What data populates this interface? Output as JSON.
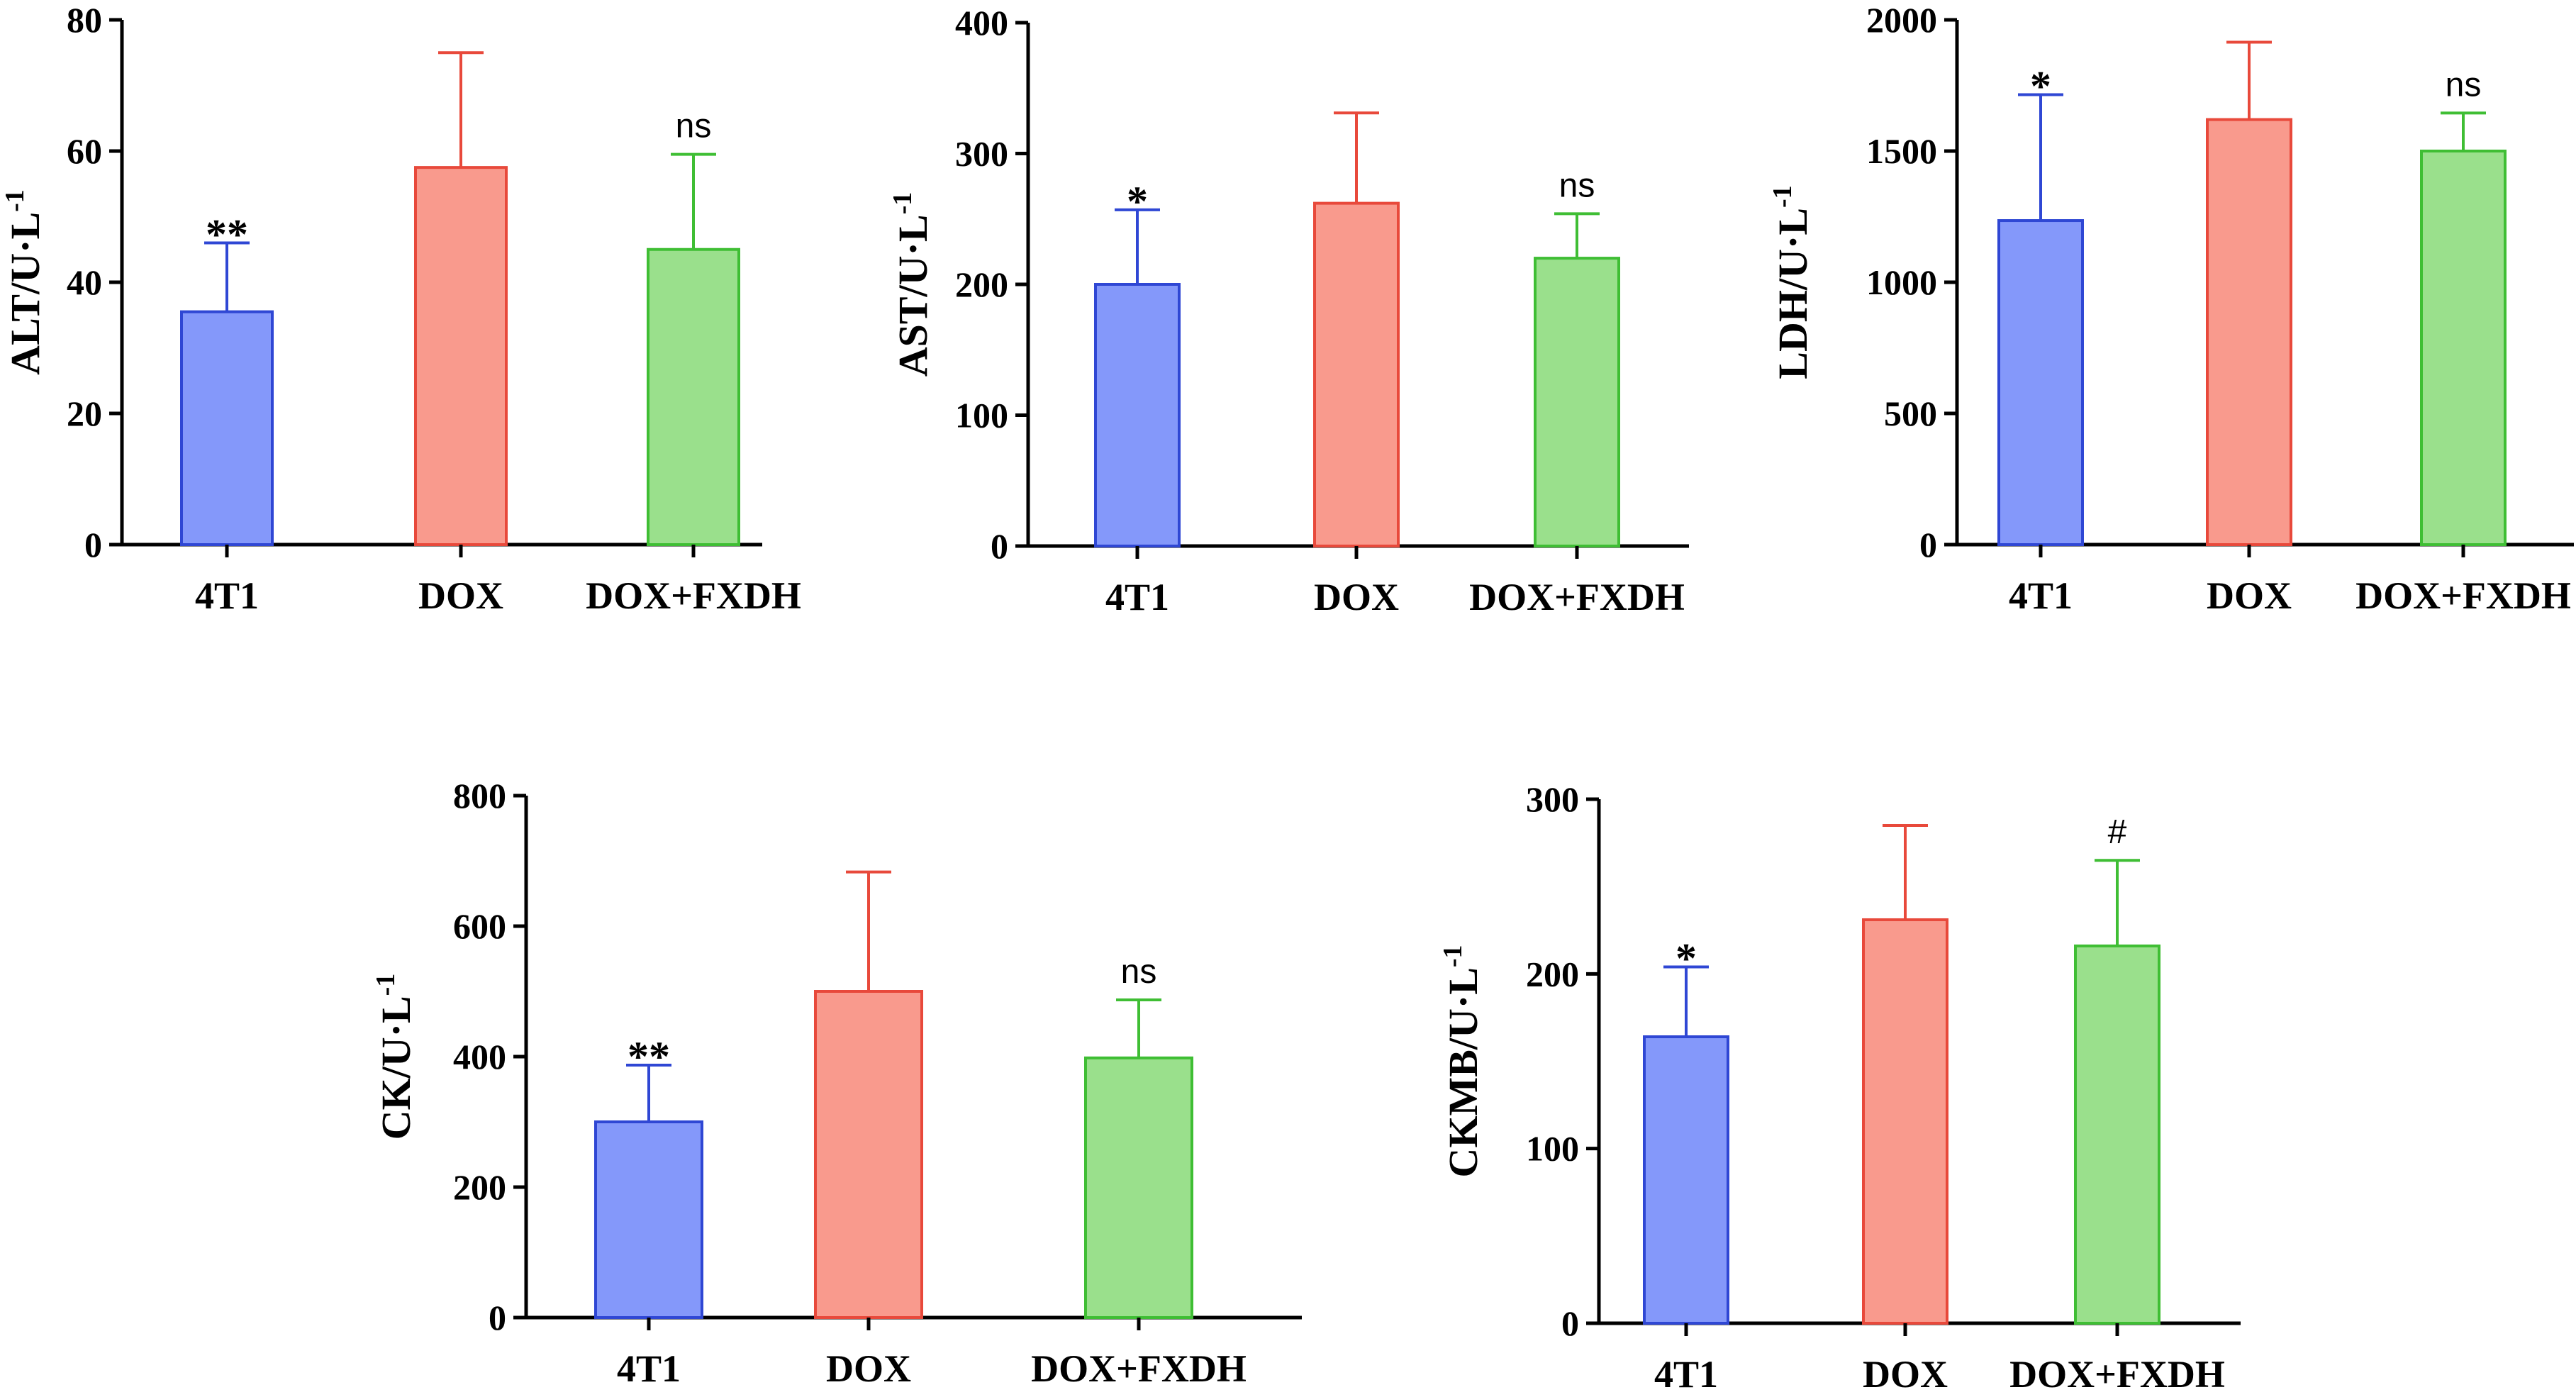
{
  "groups": [
    "4T1",
    "DOX",
    "DOX+FXDH"
  ],
  "colors": {
    "4T1": {
      "fill": "#8498FA",
      "stroke": "#2F47D4"
    },
    "DOX": {
      "fill": "#F99A8D",
      "stroke": "#E8493B"
    },
    "DOX+FXDH": {
      "fill": "#9AE08C",
      "stroke": "#3FBE34"
    }
  },
  "chart_data": [
    {
      "type": "bar",
      "ylabel": "ALT/U·L",
      "ylabel_sup": "-1",
      "ylim": [
        0,
        80
      ],
      "yticks": [
        0,
        20,
        40,
        60,
        80
      ],
      "categories": [
        "4T1",
        "DOX",
        "DOX+FXDH"
      ],
      "values": [
        35.5,
        57.5,
        45
      ],
      "errors": [
        10.5,
        17.5,
        14.5
      ],
      "annotations": [
        "**",
        "",
        "ns"
      ]
    },
    {
      "type": "bar",
      "ylabel": "AST/U·L",
      "ylabel_sup": "-1",
      "ylim": [
        0,
        400
      ],
      "yticks": [
        0,
        100,
        200,
        300,
        400
      ],
      "categories": [
        "4T1",
        "DOX",
        "DOX+FXDH"
      ],
      "values": [
        200,
        262,
        220
      ],
      "errors": [
        57,
        69,
        34
      ],
      "annotations": [
        "*",
        "",
        "ns"
      ]
    },
    {
      "type": "bar",
      "ylabel": "LDH/U·L",
      "ylabel_sup": "-1",
      "ylim": [
        0,
        2000
      ],
      "yticks": [
        0,
        500,
        1000,
        1500,
        2000
      ],
      "categories": [
        "4T1",
        "DOX",
        "DOX+FXDH"
      ],
      "values": [
        1235,
        1620,
        1500
      ],
      "errors": [
        480,
        295,
        145
      ],
      "annotations": [
        "*",
        "",
        "ns"
      ]
    },
    {
      "type": "bar",
      "ylabel": "CK/U·L",
      "ylabel_sup": "-1",
      "ylim": [
        0,
        800
      ],
      "yticks": [
        0,
        200,
        400,
        600,
        800
      ],
      "categories": [
        "4T1",
        "DOX",
        "DOX+FXDH"
      ],
      "values": [
        300,
        500,
        398
      ],
      "errors": [
        87,
        183,
        89
      ],
      "annotations": [
        "**",
        "",
        "ns"
      ]
    },
    {
      "type": "bar",
      "ylabel": "CKMB/U·L",
      "ylabel_sup": "-1",
      "ylim": [
        0,
        300
      ],
      "yticks": [
        0,
        100,
        200,
        300
      ],
      "categories": [
        "4T1",
        "DOX",
        "DOX+FXDH"
      ],
      "values": [
        164,
        231,
        216
      ],
      "errors": [
        40,
        54,
        49
      ],
      "annotations": [
        "*",
        "",
        "#"
      ]
    }
  ]
}
